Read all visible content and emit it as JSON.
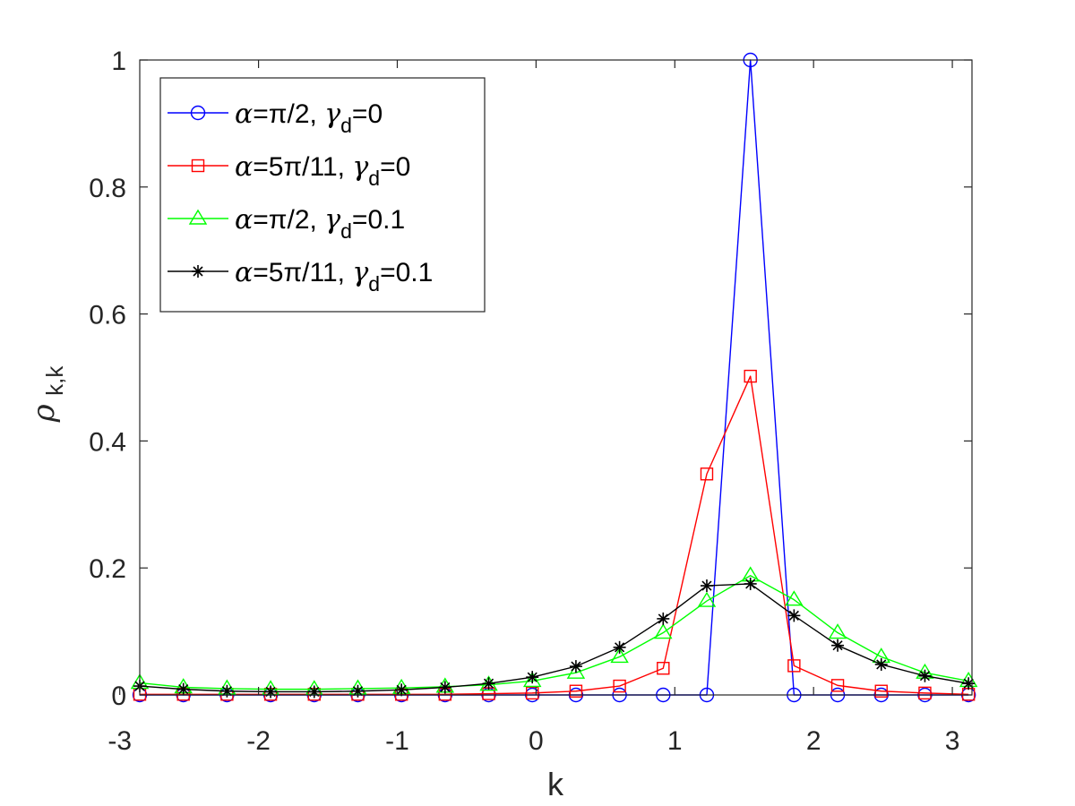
{
  "chart_data": {
    "type": "line",
    "xlabel": "k",
    "ylabel": {
      "main": "ρ",
      "sub": "k,k"
    },
    "xlim": [
      -2.856,
      3.1416
    ],
    "ylim": [
      0,
      1
    ],
    "xticks": [
      -3,
      -2,
      -1,
      0,
      1,
      2,
      3
    ],
    "xtick_labels": [
      "-3",
      "-2",
      "-1",
      "0",
      "1",
      "2",
      "3"
    ],
    "yticks": [
      0,
      0.2,
      0.4,
      0.6,
      0.8,
      1
    ],
    "ytick_labels": [
      "0",
      "0.2",
      "0.4",
      "0.6",
      "0.8",
      "1"
    ],
    "grid": false,
    "legend_position": "top-left",
    "x": [
      -2.856,
      -2.5416,
      -2.2273,
      -1.9129,
      -1.5986,
      -1.2843,
      -0.9699,
      -0.6556,
      -0.3412,
      -0.0269,
      0.2875,
      0.6018,
      0.9162,
      1.2305,
      1.5449,
      1.8592,
      2.1736,
      2.4879,
      2.8023,
      3.1166
    ],
    "series": [
      {
        "legend": {
          "alpha": "π/2",
          "gamma": "0"
        },
        "color": "#0000ff",
        "marker": "circle",
        "values": [
          0,
          0,
          0,
          0,
          0,
          0,
          0,
          0,
          0,
          0,
          0,
          0,
          0,
          0,
          1.0,
          0,
          0,
          0,
          0,
          0
        ]
      },
      {
        "legend": {
          "alpha": "5π/11",
          "gamma": "0"
        },
        "color": "#ff0000",
        "marker": "square",
        "values": [
          0.001,
          0.001,
          0.001,
          0.001,
          0.001,
          0.001,
          0.001,
          0.001,
          0.002,
          0.003,
          0.006,
          0.014,
          0.042,
          0.348,
          0.502,
          0.046,
          0.015,
          0.006,
          0.003,
          0.001
        ]
      },
      {
        "legend": {
          "alpha": "π/2",
          "gamma": "0.1"
        },
        "color": "#00ff00",
        "marker": "triangle",
        "values": [
          0.019,
          0.012,
          0.01,
          0.009,
          0.009,
          0.01,
          0.011,
          0.013,
          0.016,
          0.022,
          0.035,
          0.06,
          0.098,
          0.148,
          0.188,
          0.15,
          0.098,
          0.06,
          0.035,
          0.022
        ]
      },
      {
        "legend": {
          "alpha": "5π/11",
          "gamma": "0.1"
        },
        "color": "#000000",
        "marker": "star",
        "values": [
          0.014,
          0.009,
          0.006,
          0.005,
          0.005,
          0.006,
          0.008,
          0.012,
          0.018,
          0.028,
          0.045,
          0.075,
          0.12,
          0.172,
          0.175,
          0.125,
          0.078,
          0.048,
          0.03,
          0.018
        ]
      }
    ]
  }
}
